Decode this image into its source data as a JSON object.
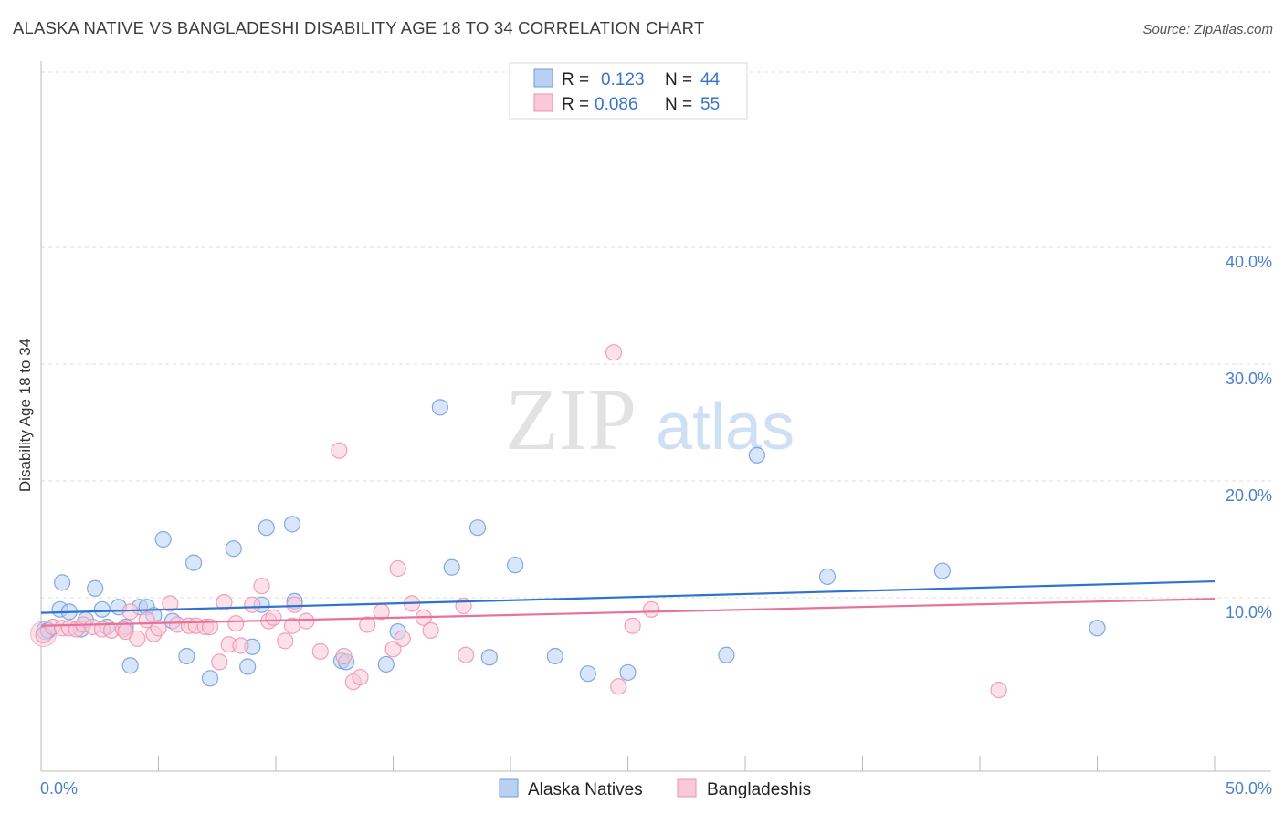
{
  "title": "ALASKA NATIVE VS BANGLADESHI DISABILITY AGE 18 TO 34 CORRELATION CHART",
  "source": "Source: ZipAtlas.com",
  "watermark": {
    "zip": "ZIP",
    "atlas": "atlas"
  },
  "legend": [
    {
      "r_label": "R =",
      "r_value": "0.123",
      "n_label": "N =",
      "n_value": "44",
      "color": "#6d9be0"
    },
    {
      "r_label": "R =",
      "r_value": "0.086",
      "n_label": "N =",
      "n_value": "55",
      "color": "#f090ad"
    }
  ],
  "chart_data": {
    "type": "scatter",
    "title": "ALASKA NATIVE VS BANGLADESHI DISABILITY AGE 18 TO 34 CORRELATION CHART",
    "xlabel": "",
    "ylabel": "Disability Age 18 to 34",
    "xlim": [
      0,
      50
    ],
    "ylim": [
      0,
      42
    ],
    "x_tick_labels": [
      "0.0%",
      "50.0%"
    ],
    "y_tick_labels": [
      "10.0%",
      "20.0%",
      "30.0%",
      "40.0%"
    ],
    "y_ticks": [
      10,
      20,
      30,
      40
    ],
    "grid": true,
    "legend_position": "top-center",
    "series": [
      {
        "name": "Alaska Natives",
        "color": "#6d9be0",
        "fill": "#b9d0f2",
        "r": "0.123",
        "n": "44",
        "trend": [
          [
            0,
            8.7
          ],
          [
            50,
            11.4
          ]
        ],
        "points": [
          [
            0.3,
            7.2
          ],
          [
            0.8,
            9.0
          ],
          [
            0.9,
            11.3
          ],
          [
            1.2,
            8.8
          ],
          [
            1.7,
            7.3
          ],
          [
            1.9,
            8.1
          ],
          [
            2.3,
            10.8
          ],
          [
            2.6,
            9.0
          ],
          [
            2.8,
            7.5
          ],
          [
            3.3,
            9.2
          ],
          [
            3.6,
            7.5
          ],
          [
            3.8,
            4.2
          ],
          [
            4.2,
            9.2
          ],
          [
            4.5,
            9.2
          ],
          [
            4.8,
            8.5
          ],
          [
            5.2,
            15.0
          ],
          [
            5.6,
            8.0
          ],
          [
            6.2,
            5.0
          ],
          [
            6.5,
            13.0
          ],
          [
            7.2,
            3.1
          ],
          [
            8.2,
            14.2
          ],
          [
            8.8,
            4.1
          ],
          [
            9.0,
            5.8
          ],
          [
            9.4,
            9.4
          ],
          [
            9.6,
            16.0
          ],
          [
            10.7,
            16.3
          ],
          [
            10.8,
            9.7
          ],
          [
            12.8,
            4.6
          ],
          [
            13.0,
            4.5
          ],
          [
            14.7,
            4.3
          ],
          [
            15.2,
            7.1
          ],
          [
            17.0,
            26.3
          ],
          [
            17.5,
            12.6
          ],
          [
            18.6,
            16.0
          ],
          [
            19.1,
            4.9
          ],
          [
            20.2,
            12.8
          ],
          [
            21.9,
            5.0
          ],
          [
            23.3,
            3.5
          ],
          [
            25.0,
            3.6
          ],
          [
            29.2,
            5.1
          ],
          [
            30.5,
            22.2
          ],
          [
            33.5,
            11.8
          ],
          [
            38.4,
            12.3
          ],
          [
            45.0,
            7.4
          ]
        ]
      },
      {
        "name": "Bangladeshis",
        "color": "#f090ad",
        "fill": "#f9c9d7",
        "r": "0.086",
        "n": "55",
        "trend": [
          [
            0,
            7.6
          ],
          [
            50,
            9.9
          ]
        ],
        "points": [
          [
            0.1,
            6.8
          ],
          [
            0.5,
            7.5
          ],
          [
            0.9,
            7.4
          ],
          [
            1.2,
            7.4
          ],
          [
            1.5,
            7.3
          ],
          [
            1.8,
            7.7
          ],
          [
            2.2,
            7.5
          ],
          [
            2.6,
            7.3
          ],
          [
            3.0,
            7.2
          ],
          [
            3.5,
            7.3
          ],
          [
            3.6,
            7.1
          ],
          [
            3.8,
            8.8
          ],
          [
            4.1,
            6.5
          ],
          [
            4.5,
            8.1
          ],
          [
            4.8,
            6.9
          ],
          [
            5.0,
            7.4
          ],
          [
            5.5,
            9.5
          ],
          [
            5.8,
            7.7
          ],
          [
            6.3,
            7.6
          ],
          [
            6.6,
            7.6
          ],
          [
            7.0,
            7.5
          ],
          [
            7.2,
            7.5
          ],
          [
            7.6,
            4.5
          ],
          [
            7.8,
            9.6
          ],
          [
            8.0,
            6.0
          ],
          [
            8.3,
            7.8
          ],
          [
            8.5,
            5.9
          ],
          [
            9.0,
            9.4
          ],
          [
            9.4,
            11.0
          ],
          [
            9.7,
            8.0
          ],
          [
            9.9,
            8.3
          ],
          [
            10.4,
            6.3
          ],
          [
            10.7,
            7.6
          ],
          [
            10.8,
            9.4
          ],
          [
            11.3,
            8.0
          ],
          [
            11.9,
            5.4
          ],
          [
            12.7,
            22.6
          ],
          [
            12.9,
            5.0
          ],
          [
            13.3,
            2.8
          ],
          [
            13.6,
            3.2
          ],
          [
            13.9,
            7.7
          ],
          [
            14.5,
            8.8
          ],
          [
            15.0,
            5.6
          ],
          [
            15.2,
            12.5
          ],
          [
            15.4,
            6.5
          ],
          [
            15.8,
            9.5
          ],
          [
            16.3,
            8.3
          ],
          [
            16.6,
            7.2
          ],
          [
            18.1,
            5.1
          ],
          [
            18.0,
            9.3
          ],
          [
            24.4,
            31.0
          ],
          [
            24.6,
            2.4
          ],
          [
            25.2,
            7.6
          ],
          [
            26.0,
            9.0
          ],
          [
            40.8,
            2.1
          ]
        ]
      }
    ]
  }
}
